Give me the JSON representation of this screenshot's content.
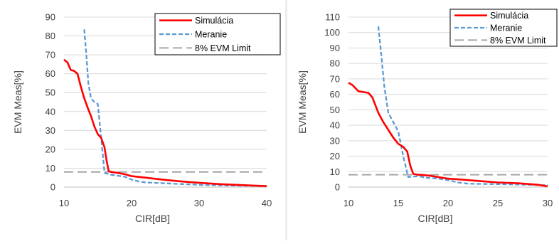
{
  "chart_data": [
    {
      "type": "line",
      "title": "",
      "xlabel": "CIR[dB]",
      "ylabel": "EVM Meas[%]",
      "xlim": [
        10,
        40
      ],
      "ylim": [
        0,
        90
      ],
      "xticks": [
        10,
        20,
        30,
        40
      ],
      "yticks": [
        0,
        10,
        20,
        30,
        40,
        50,
        60,
        70,
        80,
        90
      ],
      "grid": "horizontal",
      "legend_position": "top-right",
      "series": [
        {
          "name": "Simulácia",
          "color": "#ff0000",
          "style": "solid",
          "x": [
            10,
            10.5,
            11,
            11.5,
            12,
            12.5,
            13,
            13.5,
            14,
            14.5,
            15,
            15.5,
            16,
            16.3,
            16.6,
            17,
            18,
            19,
            20,
            22,
            25,
            28,
            30,
            33,
            36,
            40
          ],
          "y": [
            67.5,
            66,
            62,
            61.5,
            60,
            53,
            47,
            42,
            37.5,
            32,
            28,
            26,
            21,
            14,
            8.5,
            8,
            7.5,
            6.8,
            5.8,
            5,
            3.8,
            2.8,
            2.3,
            1.6,
            1.1,
            0.5
          ]
        },
        {
          "name": "Meranie",
          "color": "#5b9bd5",
          "style": "dashed",
          "x": [
            13,
            13.3,
            13.6,
            14,
            14.5,
            15,
            15.5,
            16,
            16.5,
            17,
            18,
            19,
            20,
            21,
            22,
            25,
            28,
            30,
            35,
            40
          ],
          "y": [
            83.5,
            70,
            55,
            47,
            45,
            44,
            26,
            7.5,
            7,
            6.5,
            6,
            5.5,
            4,
            3,
            2.5,
            2,
            1.5,
            1.2,
            0.8,
            0.6
          ]
        },
        {
          "name": "8% EVM Limit",
          "color": "#a6a6a6",
          "style": "longdash",
          "x": [
            10,
            40
          ],
          "y": [
            8,
            8
          ]
        }
      ]
    },
    {
      "type": "line",
      "title": "",
      "xlabel": "CIR[dB]",
      "ylabel": "EVM Meas[%]",
      "xlim": [
        10,
        30
      ],
      "ylim": [
        0,
        110
      ],
      "xticks": [
        10,
        15,
        20,
        25,
        30
      ],
      "yticks": [
        0,
        10,
        20,
        30,
        40,
        50,
        60,
        70,
        80,
        90,
        100,
        110
      ],
      "grid": "horizontal",
      "legend_position": "top-right",
      "series": [
        {
          "name": "Simulácia",
          "color": "#ff0000",
          "style": "solid",
          "x": [
            10,
            10.4,
            11,
            11.5,
            12,
            12.4,
            13,
            13.5,
            14,
            14.5,
            15,
            15.5,
            15.9,
            16.2,
            16.5,
            17,
            18,
            19,
            20,
            21,
            22,
            23,
            25,
            27,
            29,
            30
          ],
          "y": [
            67.5,
            66,
            62,
            61.5,
            61,
            58,
            48,
            42,
            37,
            32,
            28,
            26,
            23,
            14,
            8.5,
            8,
            7.5,
            6.5,
            5.5,
            5,
            4.5,
            4,
            3,
            2.5,
            1.5,
            0.5
          ]
        },
        {
          "name": "Meranie",
          "color": "#5b9bd5",
          "style": "dashed",
          "x": [
            13,
            13.3,
            13.6,
            14,
            14.5,
            15,
            15.5,
            16,
            16.5,
            17,
            18,
            19,
            20,
            21,
            22,
            24,
            26,
            28,
            29.5,
            30
          ],
          "y": [
            104,
            85,
            65,
            48,
            42,
            36,
            20,
            6.5,
            6.8,
            7,
            6,
            5.5,
            4.5,
            3,
            2.2,
            2,
            1.8,
            1.5,
            1.2,
            1.5
          ]
        },
        {
          "name": "8% EVM Limit",
          "color": "#a6a6a6",
          "style": "longdash",
          "x": [
            10,
            30
          ],
          "y": [
            8,
            8
          ]
        }
      ]
    }
  ]
}
